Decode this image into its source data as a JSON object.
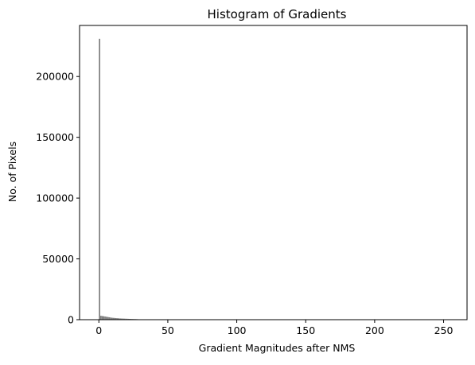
{
  "chart_data": {
    "type": "bar",
    "title": "Histogram of Gradients",
    "xlabel": "Gradient Magnitudes after NMS",
    "ylabel": "No. of Pixels",
    "xlim": [
      -14,
      267
    ],
    "ylim": [
      0,
      242000
    ],
    "xticks": [
      0,
      50,
      100,
      150,
      200,
      250
    ],
    "yticks": [
      0,
      50000,
      100000,
      150000,
      200000
    ],
    "bar_color": "#808080",
    "bin_width": 1,
    "bins": [
      {
        "x": 0,
        "value": 231000
      },
      {
        "x": 1,
        "value": 3200
      },
      {
        "x": 2,
        "value": 3000
      },
      {
        "x": 3,
        "value": 2800
      },
      {
        "x": 4,
        "value": 2600
      },
      {
        "x": 5,
        "value": 2400
      },
      {
        "x": 6,
        "value": 2200
      },
      {
        "x": 7,
        "value": 2000
      },
      {
        "x": 8,
        "value": 1800
      },
      {
        "x": 9,
        "value": 1600
      },
      {
        "x": 10,
        "value": 1500
      },
      {
        "x": 11,
        "value": 1400
      },
      {
        "x": 12,
        "value": 1300
      },
      {
        "x": 13,
        "value": 1200
      },
      {
        "x": 14,
        "value": 1100
      },
      {
        "x": 15,
        "value": 1000
      },
      {
        "x": 16,
        "value": 950
      },
      {
        "x": 17,
        "value": 900
      },
      {
        "x": 18,
        "value": 850
      },
      {
        "x": 19,
        "value": 800
      },
      {
        "x": 20,
        "value": 750
      },
      {
        "x": 21,
        "value": 700
      },
      {
        "x": 22,
        "value": 650
      },
      {
        "x": 23,
        "value": 600
      },
      {
        "x": 24,
        "value": 560
      },
      {
        "x": 25,
        "value": 520
      },
      {
        "x": 26,
        "value": 480
      },
      {
        "x": 27,
        "value": 440
      },
      {
        "x": 28,
        "value": 350
      },
      {
        "x": 29,
        "value": 250
      },
      {
        "x": 30,
        "value": 180
      },
      {
        "x": 32,
        "value": 120
      },
      {
        "x": 35,
        "value": 80
      },
      {
        "x": 40,
        "value": 50
      },
      {
        "x": 45,
        "value": 30
      },
      {
        "x": 50,
        "value": 20
      }
    ]
  }
}
